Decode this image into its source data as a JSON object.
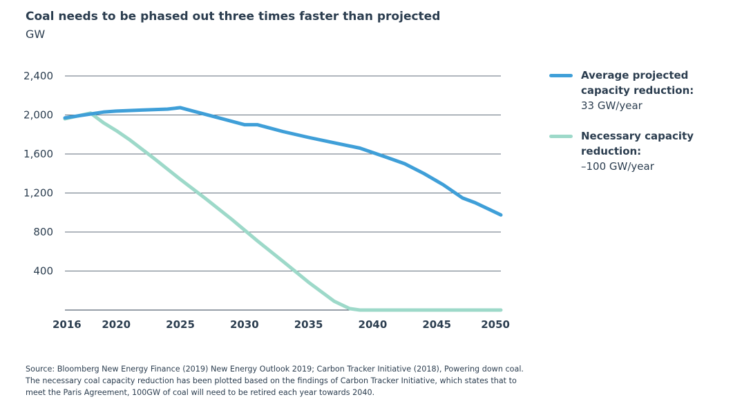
{
  "header": {
    "title": "Coal needs to be phased out three times faster than projected",
    "unit": "GW"
  },
  "chart_data": {
    "type": "line",
    "title": "Coal needs to be phased out three times faster than projected",
    "ylabel": "GW",
    "xlim": [
      2016,
      2050
    ],
    "ylim": [
      0,
      2400
    ],
    "x_ticks": [
      2016,
      2020,
      2025,
      2030,
      2035,
      2040,
      2045,
      2050
    ],
    "y_ticks": [
      400,
      800,
      1200,
      1600,
      2000,
      2400
    ],
    "y_tick_labels": [
      "400",
      "800",
      "1,200",
      "1,600",
      "2,000",
      "2,400"
    ],
    "grid": true,
    "legend_position": "right",
    "series": [
      {
        "key": "projected",
        "name": "Average projected capacity reduction:",
        "rate": "33 GW/year",
        "color": "#3f9fd8",
        "points": [
          [
            2016,
            1970
          ],
          [
            2018,
            2010
          ],
          [
            2019,
            2030
          ],
          [
            2020,
            2040
          ],
          [
            2022,
            2050
          ],
          [
            2024,
            2060
          ],
          [
            2025,
            2075
          ],
          [
            2026,
            2040
          ],
          [
            2028,
            1970
          ],
          [
            2030,
            1900
          ],
          [
            2031,
            1900
          ],
          [
            2033,
            1830
          ],
          [
            2035,
            1770
          ],
          [
            2037,
            1715
          ],
          [
            2039,
            1660
          ],
          [
            2040,
            1615
          ],
          [
            2041,
            1570
          ],
          [
            2042.5,
            1500
          ],
          [
            2044,
            1400
          ],
          [
            2045.5,
            1285
          ],
          [
            2047,
            1150
          ],
          [
            2048,
            1100
          ],
          [
            2050,
            975
          ]
        ]
      },
      {
        "key": "necessary",
        "name": "Necessary capacity reduction:",
        "rate": "–100 GW/year",
        "color": "#9dd9c9",
        "points": [
          [
            2016,
            1960
          ],
          [
            2018,
            2020
          ],
          [
            2019,
            1920
          ],
          [
            2020,
            1840
          ],
          [
            2021,
            1750
          ],
          [
            2023,
            1550
          ],
          [
            2025,
            1340
          ],
          [
            2027,
            1140
          ],
          [
            2029,
            930
          ],
          [
            2031,
            710
          ],
          [
            2033,
            500
          ],
          [
            2035,
            285
          ],
          [
            2037,
            90
          ],
          [
            2038.2,
            15
          ],
          [
            2039,
            0
          ],
          [
            2050,
            0
          ]
        ]
      }
    ]
  },
  "footer": {
    "source_lines": [
      "Source: Bloomberg New Energy Finance (2019) New Energy Outlook 2019; Carbon Tracker Initiative (2018), Powering down coal.",
      "The necessary coal capacity reduction has been plotted based on the findings of Carbon Tracker Initiative, which states that to",
      "meet the Paris Agreement, 100GW of coal will need to be retired each year towards 2040."
    ]
  }
}
